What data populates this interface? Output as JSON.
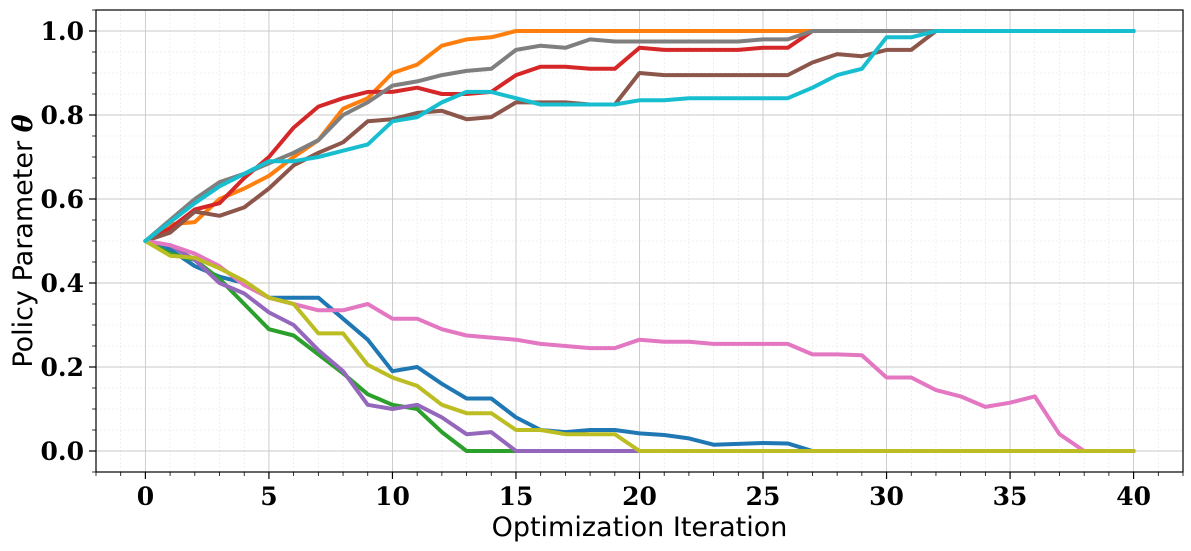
{
  "chart_data": {
    "type": "line",
    "title": "",
    "xlabel": "Optimization Iteration",
    "ylabel": "Policy Parameter ",
    "ylabel_symbol": "θ",
    "xlim": [
      -2,
      42
    ],
    "ylim": [
      -0.05,
      1.05
    ],
    "xticks": [
      0,
      5,
      10,
      15,
      20,
      25,
      30,
      35,
      40
    ],
    "xtick_labels": [
      "0",
      "5",
      "10",
      "15",
      "20",
      "25",
      "30",
      "35",
      "40"
    ],
    "yticks": [
      0.0,
      0.2,
      0.4,
      0.6,
      0.8,
      1.0
    ],
    "ytick_labels": [
      "0.0",
      "0.2",
      "0.4",
      "0.6",
      "0.8",
      "1.0"
    ],
    "grid": "major and minor",
    "legend": "none",
    "x": [
      0,
      1,
      2,
      3,
      4,
      5,
      6,
      7,
      8,
      9,
      10,
      11,
      12,
      13,
      14,
      15,
      16,
      17,
      18,
      19,
      20,
      21,
      22,
      23,
      24,
      25,
      26,
      27,
      28,
      29,
      30,
      31,
      32,
      33,
      34,
      35,
      36,
      37,
      38,
      39,
      40
    ],
    "series": [
      {
        "color": "#1f77b4",
        "values": [
          0.5,
          0.48,
          0.44,
          0.415,
          0.4,
          0.365,
          0.365,
          0.365,
          0.315,
          0.265,
          0.19,
          0.2,
          0.16,
          0.125,
          0.125,
          0.08,
          0.05,
          0.045,
          0.05,
          0.05,
          0.042,
          0.038,
          0.03,
          0.015,
          0.017,
          0.019,
          0.018,
          0,
          0,
          0,
          0,
          0,
          0,
          0,
          0,
          0,
          0,
          0,
          0,
          0,
          0
        ]
      },
      {
        "color": "#ff7f0e",
        "values": [
          0.5,
          0.54,
          0.545,
          0.6,
          0.625,
          0.655,
          0.7,
          0.74,
          0.815,
          0.84,
          0.9,
          0.92,
          0.965,
          0.98,
          0.985,
          1.0,
          1.0,
          1.0,
          1.0,
          1.0,
          1.0,
          1.0,
          1.0,
          1.0,
          1.0,
          1.0,
          1.0,
          1.0,
          1.0,
          1.0,
          1.0,
          1.0,
          1.0,
          1.0,
          1.0,
          1.0,
          1.0,
          1.0,
          1.0,
          1.0,
          1.0
        ]
      },
      {
        "color": "#2ca02c",
        "values": [
          0.5,
          0.47,
          0.455,
          0.41,
          0.35,
          0.29,
          0.275,
          0.23,
          0.185,
          0.135,
          0.11,
          0.1,
          0.045,
          0.0,
          0.0,
          0.0,
          0,
          0,
          0,
          0,
          0,
          0,
          0,
          0,
          0,
          0,
          0,
          0,
          0,
          0,
          0,
          0,
          0,
          0,
          0,
          0,
          0,
          0,
          0,
          0,
          0
        ]
      },
      {
        "color": "#d62728",
        "values": [
          0.5,
          0.53,
          0.575,
          0.59,
          0.65,
          0.7,
          0.77,
          0.82,
          0.84,
          0.855,
          0.855,
          0.865,
          0.85,
          0.85,
          0.855,
          0.895,
          0.915,
          0.915,
          0.91,
          0.91,
          0.96,
          0.955,
          0.955,
          0.955,
          0.955,
          0.96,
          0.96,
          1.0,
          1.0,
          1.0,
          1.0,
          1.0,
          1.0,
          1.0,
          1.0,
          1.0,
          1.0,
          1.0,
          1.0,
          1.0,
          1.0
        ]
      },
      {
        "color": "#9467bd",
        "values": [
          0.5,
          0.49,
          0.455,
          0.4,
          0.375,
          0.33,
          0.3,
          0.24,
          0.19,
          0.11,
          0.1,
          0.11,
          0.08,
          0.04,
          0.045,
          0.0,
          0,
          0,
          0,
          0,
          0,
          0,
          0,
          0,
          0,
          0,
          0,
          0,
          0,
          0,
          0,
          0,
          0,
          0,
          0,
          0,
          0,
          0,
          0,
          0,
          0
        ]
      },
      {
        "color": "#8c564b",
        "values": [
          0.5,
          0.52,
          0.57,
          0.56,
          0.58,
          0.625,
          0.68,
          0.71,
          0.735,
          0.785,
          0.79,
          0.805,
          0.81,
          0.79,
          0.795,
          0.83,
          0.83,
          0.83,
          0.825,
          0.825,
          0.9,
          0.895,
          0.895,
          0.895,
          0.895,
          0.895,
          0.895,
          0.925,
          0.945,
          0.94,
          0.955,
          0.955,
          1.0,
          1.0,
          1.0,
          1.0,
          1.0,
          1.0,
          1.0,
          1.0,
          1.0
        ]
      },
      {
        "color": "#e377c2",
        "values": [
          0.5,
          0.49,
          0.47,
          0.44,
          0.395,
          0.365,
          0.35,
          0.335,
          0.335,
          0.35,
          0.315,
          0.315,
          0.29,
          0.275,
          0.27,
          0.265,
          0.255,
          0.25,
          0.245,
          0.245,
          0.265,
          0.26,
          0.26,
          0.255,
          0.255,
          0.255,
          0.255,
          0.23,
          0.23,
          0.228,
          0.175,
          0.175,
          0.145,
          0.13,
          0.105,
          0.115,
          0.13,
          0.04,
          0.0,
          0.0,
          0.0
        ]
      },
      {
        "color": "#7f7f7f",
        "values": [
          0.5,
          0.55,
          0.6,
          0.64,
          0.66,
          0.685,
          0.71,
          0.74,
          0.8,
          0.83,
          0.87,
          0.88,
          0.895,
          0.905,
          0.91,
          0.955,
          0.965,
          0.96,
          0.98,
          0.975,
          0.975,
          0.975,
          0.975,
          0.975,
          0.975,
          0.98,
          0.98,
          1.0,
          1.0,
          1.0,
          1.0,
          1.0,
          1.0,
          1.0,
          1.0,
          1.0,
          1.0,
          1.0,
          1.0,
          1.0,
          1.0
        ]
      },
      {
        "color": "#bcbd22",
        "values": [
          0.5,
          0.465,
          0.46,
          0.435,
          0.405,
          0.365,
          0.35,
          0.28,
          0.28,
          0.205,
          0.175,
          0.155,
          0.11,
          0.09,
          0.09,
          0.05,
          0.05,
          0.04,
          0.04,
          0.04,
          0.0,
          0,
          0,
          0,
          0,
          0,
          0,
          0,
          0,
          0,
          0,
          0,
          0,
          0,
          0,
          0,
          0,
          0,
          0,
          0,
          0
        ]
      },
      {
        "color": "#17becf",
        "values": [
          0.5,
          0.545,
          0.59,
          0.63,
          0.66,
          0.69,
          0.69,
          0.7,
          0.715,
          0.73,
          0.785,
          0.795,
          0.83,
          0.855,
          0.855,
          0.84,
          0.825,
          0.825,
          0.825,
          0.825,
          0.835,
          0.835,
          0.84,
          0.84,
          0.84,
          0.84,
          0.84,
          0.865,
          0.895,
          0.91,
          0.985,
          0.985,
          1.0,
          1.0,
          1.0,
          1.0,
          1.0,
          1.0,
          1.0,
          1.0,
          1.0
        ]
      }
    ]
  }
}
